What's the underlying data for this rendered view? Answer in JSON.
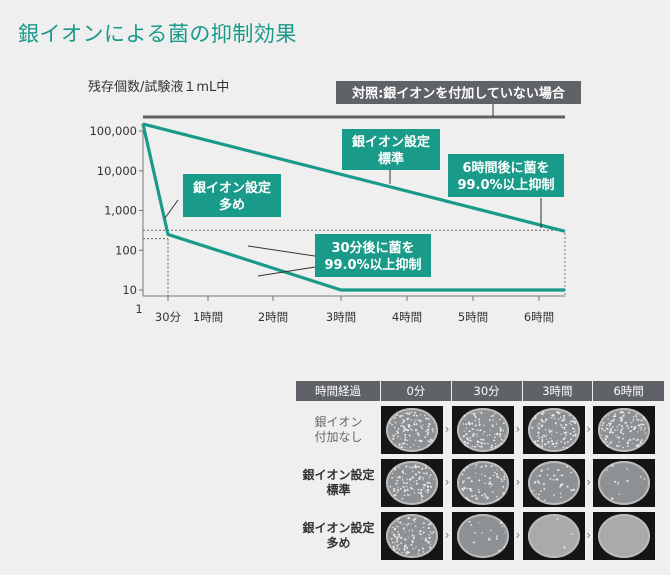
{
  "title": "銀イオンによる菌の抑制効果",
  "chart_data": {
    "type": "line",
    "ylabel": "残存個数/試験液１mL中",
    "y_scale": "log",
    "y_ticks": [
      "100,000",
      "10,000",
      "1,000",
      "100",
      "10"
    ],
    "y_tick_values": [
      100000,
      10000,
      1000,
      100,
      10
    ],
    "x_ticks": [
      "1",
      "30分",
      "1時間",
      "2時間",
      "3時間",
      "4時間",
      "5時間",
      "6時間"
    ],
    "x_tick_hours": [
      0,
      0.5,
      1,
      2,
      3,
      4,
      5,
      6
    ],
    "series": [
      {
        "name": "対照:銀イオンを付加していない場合",
        "x": [
          0,
          6.3
        ],
        "y": [
          200000,
          200000
        ]
      },
      {
        "name": "銀イオン設定標準",
        "x": [
          0,
          6.3
        ],
        "y": [
          150000,
          300
        ]
      },
      {
        "name": "銀イオン設定多め",
        "x": [
          0,
          0.5,
          3,
          6.3
        ],
        "y": [
          150000,
          250,
          10,
          10
        ]
      }
    ],
    "annotations": {
      "control": "対照:銀イオンを付加していない場合",
      "standard": "銀イオン設定\n標準",
      "high": "銀イオン設定\n多め",
      "six_hours": "6時間後に菌を\n99.0%以上抑制",
      "thirty_min": "30分後に菌を\n99.0%以上抑制"
    },
    "colors": {
      "teal": "#1a9b8a",
      "control": "#5f6266"
    }
  },
  "panel": {
    "headers": [
      "時間経過",
      "0分",
      "30分",
      "3時間",
      "6時間"
    ],
    "rows": [
      {
        "label": [
          "銀イオン",
          "付加なし"
        ],
        "density": [
          0.8,
          0.85,
          0.9,
          0.95
        ]
      },
      {
        "label": [
          "銀イオン設定",
          "標準"
        ],
        "density": [
          0.8,
          0.55,
          0.3,
          0.08
        ]
      },
      {
        "label": [
          "銀イオン設定",
          "多め"
        ],
        "density": [
          0.8,
          0.12,
          0.02,
          0.0
        ]
      }
    ]
  }
}
